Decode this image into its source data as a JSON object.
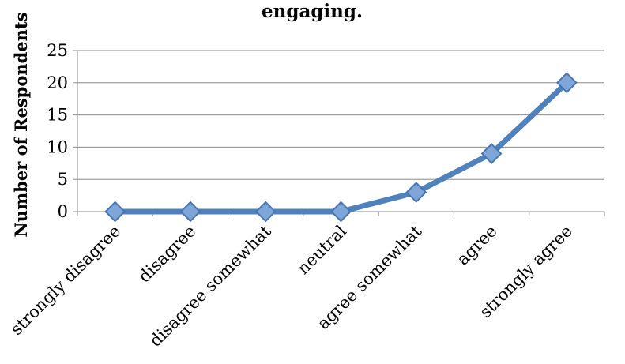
{
  "chart_data": {
    "type": "line",
    "title": "engaging.",
    "xlabel": "",
    "ylabel": "Number of Respondents",
    "categories": [
      "strongly disagree",
      "disagree",
      "disagree somewhat",
      "neutral",
      "agree somewhat",
      "agree",
      "strongly agree"
    ],
    "series": [
      {
        "values": [
          0,
          0,
          0,
          0,
          3,
          9,
          20
        ]
      }
    ],
    "ylim": [
      0,
      25
    ],
    "yticks": [
      0,
      5,
      10,
      15,
      20,
      25
    ],
    "grid": true,
    "legend": "none",
    "colors": {
      "line": "#4f81bd",
      "marker_fill": "#7fa6d9",
      "marker_stroke": "#4a76b0"
    }
  }
}
